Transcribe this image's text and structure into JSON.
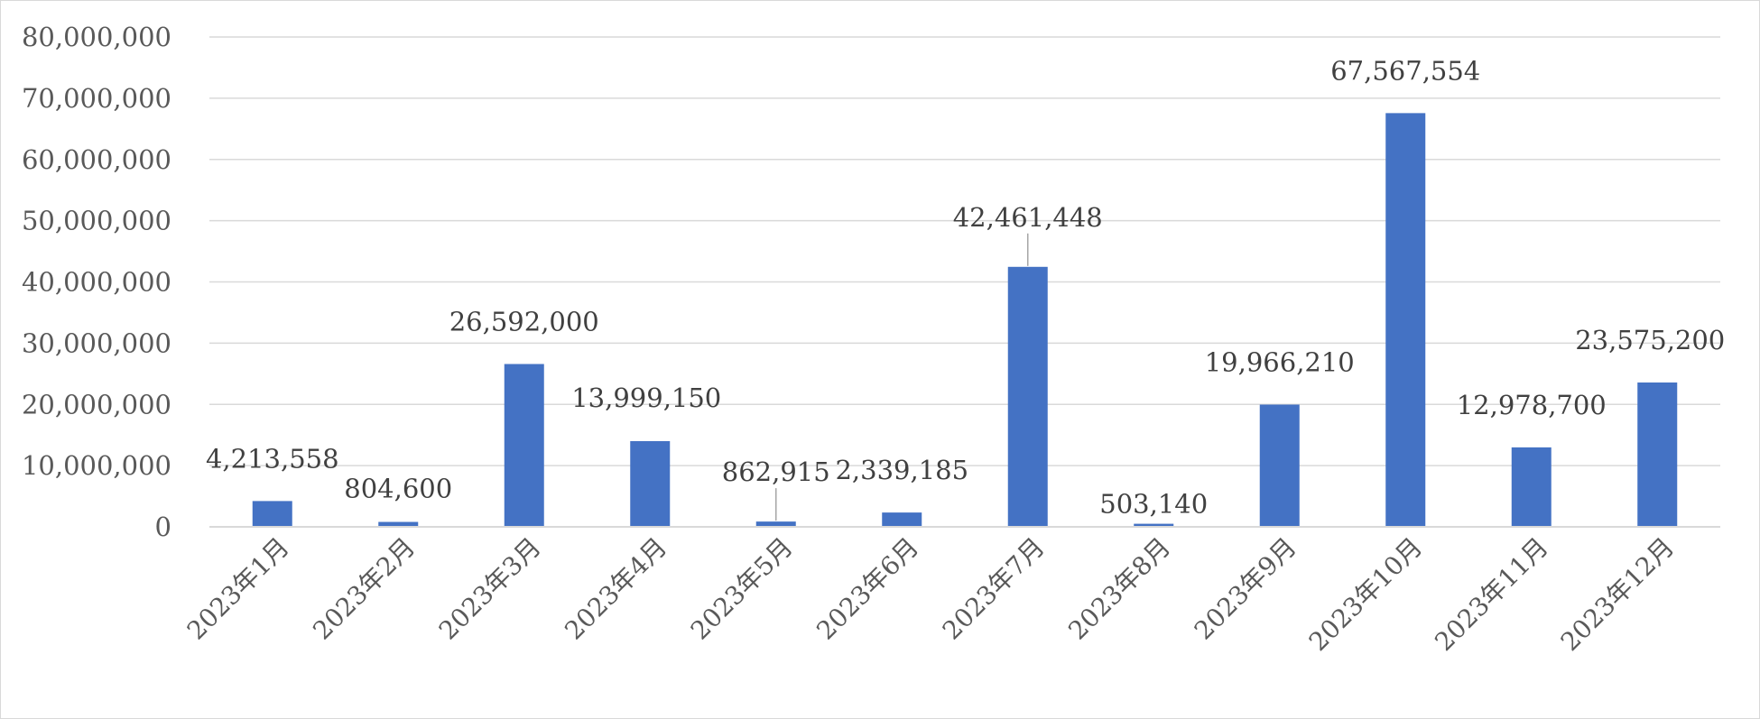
{
  "chart_data": {
    "type": "bar",
    "title": "",
    "xlabel": "",
    "ylabel": "",
    "categories": [
      "2023年1月",
      "2023年2月",
      "2023年3月",
      "2023年4月",
      "2023年5月",
      "2023年6月",
      "2023年7月",
      "2023年8月",
      "2023年9月",
      "2023年10月",
      "2023年11月",
      "2023年12月"
    ],
    "values": [
      4213558,
      804600,
      26592000,
      13999150,
      862915,
      2339185,
      42461448,
      503140,
      19966210,
      67567554,
      12978700,
      23575200
    ],
    "data_labels": [
      "4,213,558",
      "804,600",
      "26,592,000",
      "13,999,150",
      "862,915",
      "2,339,185",
      "42,461,448",
      "503,140",
      "19,966,210",
      "67,567,554",
      "12,978,700",
      "23,575,200"
    ],
    "ylim": [
      0,
      80000000
    ],
    "yticks": [
      "0",
      "10,000,000",
      "20,000,000",
      "30,000,000",
      "40,000,000",
      "50,000,000",
      "60,000,000",
      "70,000,000",
      "80,000,000"
    ],
    "grid": true,
    "legend": "none",
    "colors": {
      "bar": "#4472C4",
      "grid": "#d9d9d9",
      "leader": "#a6a6a6"
    }
  }
}
